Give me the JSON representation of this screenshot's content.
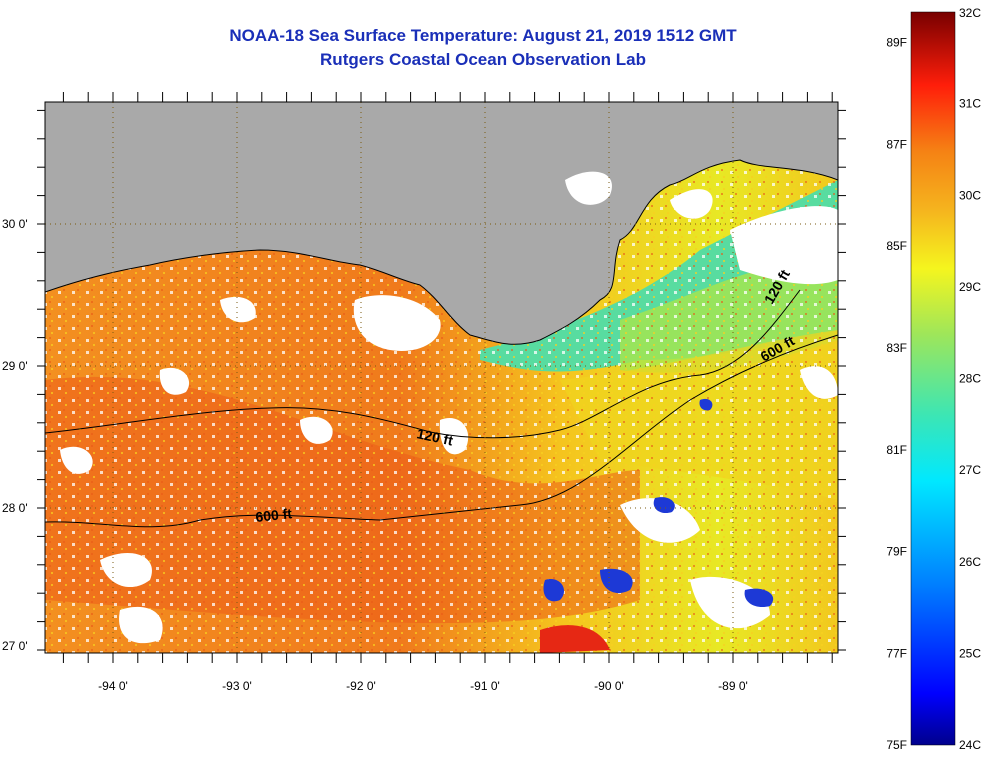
{
  "header": {
    "title": "NOAA-18 Sea Surface Temperature:  August 21, 2019 1512 GMT",
    "subtitle": "Rutgers Coastal Ocean Observation Lab"
  },
  "map": {
    "lat_labels": [
      "30 0'",
      "29 0'",
      "28 0'",
      "27 0'"
    ],
    "lon_labels": [
      "-94 0'",
      "-93 0'",
      "-92 0'",
      "-91 0'",
      "-90 0'",
      "-89 0'"
    ],
    "contours": {
      "c120_west": "120 ft",
      "c600_west": "600 ft",
      "c120_east": "120 ft",
      "c600_east": "600 ft"
    },
    "colors": {
      "land": "#a9a9a9",
      "cloud": "#ffffff",
      "warm": "#f5901e",
      "hot": "#ee5a1a",
      "cool": "#3cd7a0",
      "cold": "#1d39d6"
    }
  },
  "colorbar": {
    "fahrenheit_labels": [
      "89F",
      "87F",
      "85F",
      "83F",
      "81F",
      "79F",
      "77F",
      "75F"
    ],
    "celsius_labels": [
      "32C",
      "31C",
      "30C",
      "29C",
      "28C",
      "27C",
      "26C",
      "25C",
      "24C"
    ],
    "range_c": [
      24,
      32
    ],
    "range_f": [
      75,
      89
    ]
  }
}
